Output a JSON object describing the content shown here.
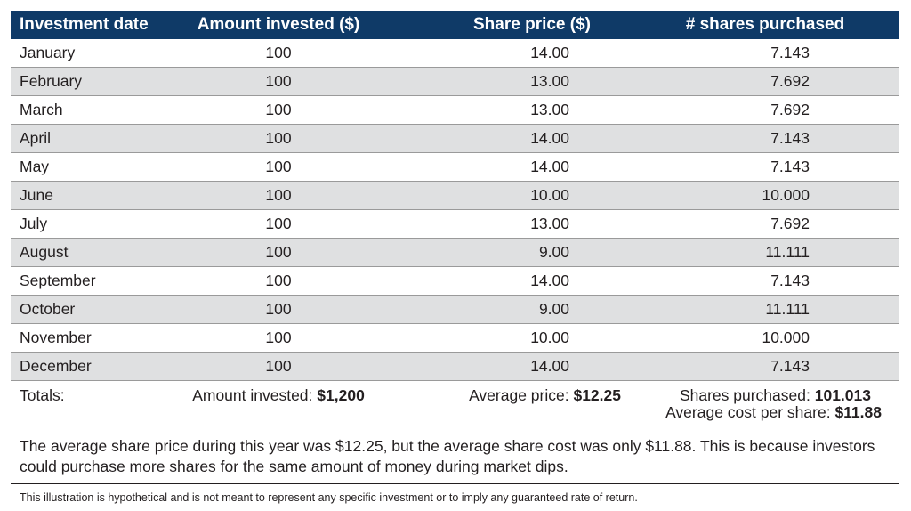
{
  "table": {
    "headers": [
      "Investment date",
      "Amount invested ($)",
      "Share price ($)",
      "# shares purchased"
    ],
    "rows": [
      [
        "January",
        "100",
        "14.00",
        "7.143"
      ],
      [
        "February",
        "100",
        "13.00",
        "7.692"
      ],
      [
        "March",
        "100",
        "13.00",
        "7.692"
      ],
      [
        "April",
        "100",
        "14.00",
        "7.143"
      ],
      [
        "May",
        "100",
        "14.00",
        "7.143"
      ],
      [
        "June",
        "100",
        "10.00",
        "10.000"
      ],
      [
        "July",
        "100",
        "13.00",
        "7.692"
      ],
      [
        "August",
        "100",
        "9.00",
        "11.111"
      ],
      [
        "September",
        "100",
        "14.00",
        "7.143"
      ],
      [
        "October",
        "100",
        "9.00",
        "11.111"
      ],
      [
        "November",
        "100",
        "10.00",
        "10.000"
      ],
      [
        "December",
        "100",
        "14.00",
        "7.143"
      ]
    ],
    "header_color": "#0f3a67",
    "alt_row_color": "#dfe0e1"
  },
  "totals": {
    "label": "Totals:",
    "amount_label": "Amount invested:",
    "amount_value": "$1,200",
    "avg_price_label": "Average price:",
    "avg_price_value": "$12.25",
    "shares_label": "Shares purchased:",
    "shares_value": "101.013",
    "avg_cost_label": "Average cost per share:",
    "avg_cost_value": "$11.88"
  },
  "note": "The average share price during this year was $12.25, but the average share cost was only $11.88. This is because investors could purchase more shares for the same amount of money during market dips.",
  "disclaimer": "This illustration is hypothetical and is not meant to represent any specific investment or to imply any guaranteed rate of return."
}
